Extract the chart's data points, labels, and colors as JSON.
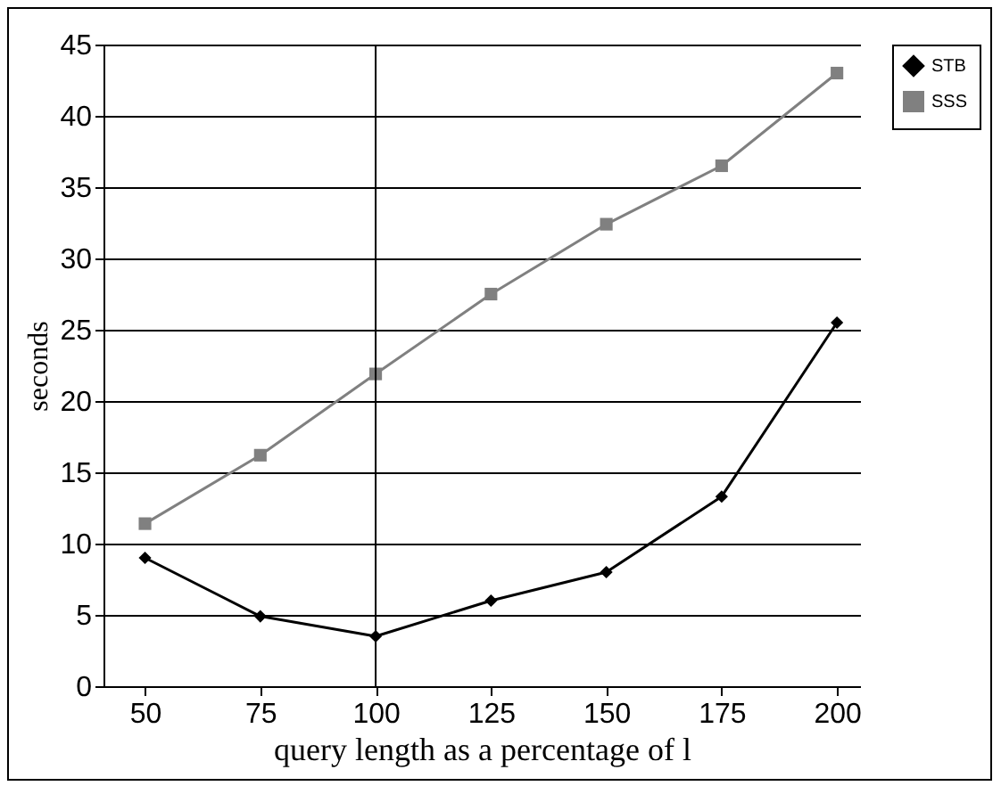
{
  "chart_data": {
    "type": "line",
    "xlabel": "query length as a percentage of l",
    "ylabel": "seconds",
    "x": [
      50,
      75,
      100,
      125,
      150,
      175,
      200
    ],
    "xlim": [
      41,
      205
    ],
    "xticks": [
      50,
      75,
      100,
      125,
      150,
      175,
      200
    ],
    "ylim": [
      0,
      45
    ],
    "yticks": [
      0,
      5,
      10,
      15,
      20,
      25,
      30,
      35,
      40,
      45
    ],
    "grid": "y",
    "legend": "right",
    "ref_lines": [
      {
        "axis": "x",
        "value": 100,
        "color": "#000000"
      }
    ],
    "series": [
      {
        "name": "STB",
        "color": "#000000",
        "marker": "diamond",
        "values": [
          9.0,
          4.9,
          3.5,
          6.0,
          8.0,
          13.3,
          25.5
        ]
      },
      {
        "name": "SSS",
        "color": "#808080",
        "marker": "square",
        "values": [
          11.4,
          16.2,
          21.9,
          27.5,
          32.4,
          36.5,
          43.0
        ]
      }
    ]
  }
}
